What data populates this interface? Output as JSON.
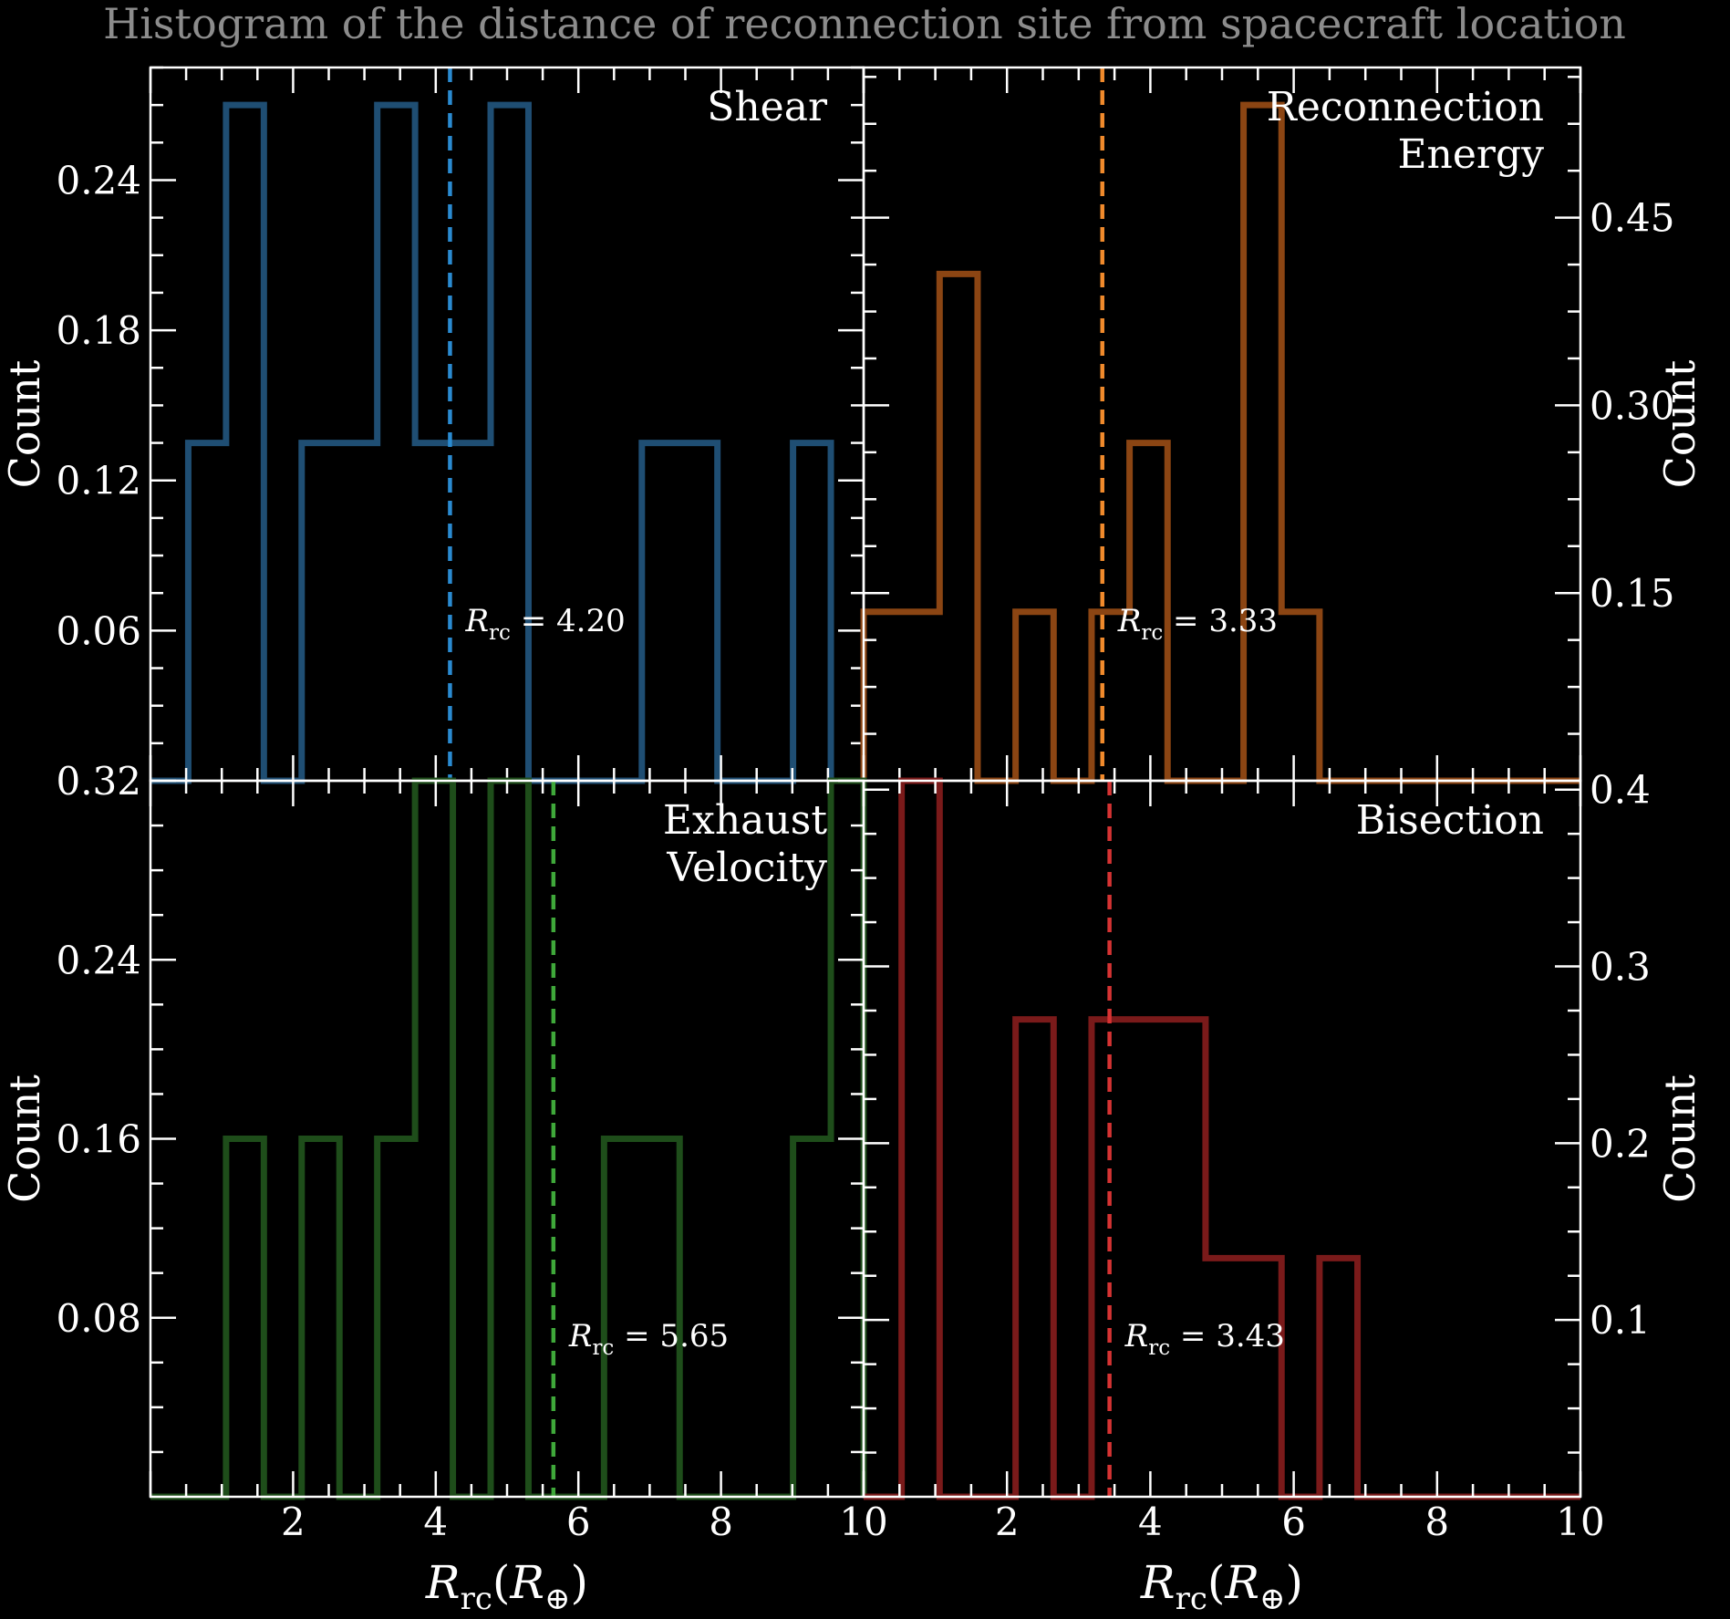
{
  "figure": {
    "title": "Histogram of the distance of reconnection site from spacecraft location",
    "title_color": "#8c8c8c",
    "xlabel": {
      "symbol": "R",
      "sub": "rc",
      "open": "(",
      "unit": "R",
      "unit_sub": "⊕",
      "close": ")"
    },
    "annotation_prefix": {
      "symbol": "R",
      "sub": "rc",
      "eq": " = "
    }
  },
  "chart_data": [
    {
      "type": "bar",
      "histtype": "step",
      "label": "Shear",
      "color": "#1f4e73",
      "mean_color": "#2a8bd1",
      "mean": 4.2,
      "mean_text": "4.20",
      "bin_width": 0.53,
      "bins": [
        {
          "x0": 0.0,
          "x1": 0.53,
          "y": 0.0
        },
        {
          "x0": 0.53,
          "x1": 1.06,
          "y": 0.135
        },
        {
          "x0": 1.06,
          "x1": 1.59,
          "y": 0.27
        },
        {
          "x0": 1.59,
          "x1": 2.12,
          "y": 0.0
        },
        {
          "x0": 2.12,
          "x1": 2.65,
          "y": 0.135
        },
        {
          "x0": 2.65,
          "x1": 3.18,
          "y": 0.135
        },
        {
          "x0": 3.18,
          "x1": 3.71,
          "y": 0.27
        },
        {
          "x0": 3.71,
          "x1": 4.24,
          "y": 0.135
        },
        {
          "x0": 4.24,
          "x1": 4.77,
          "y": 0.135
        },
        {
          "x0": 4.77,
          "x1": 5.3,
          "y": 0.27
        },
        {
          "x0": 5.3,
          "x1": 5.83,
          "y": 0.0
        },
        {
          "x0": 5.83,
          "x1": 6.36,
          "y": 0.0
        },
        {
          "x0": 6.36,
          "x1": 6.89,
          "y": 0.0
        },
        {
          "x0": 6.89,
          "x1": 7.42,
          "y": 0.135
        },
        {
          "x0": 7.42,
          "x1": 7.95,
          "y": 0.135
        },
        {
          "x0": 7.95,
          "x1": 8.48,
          "y": 0.0
        },
        {
          "x0": 8.48,
          "x1": 9.01,
          "y": 0.0
        },
        {
          "x0": 9.01,
          "x1": 9.54,
          "y": 0.135
        },
        {
          "x0": 9.54,
          "x1": 10.0,
          "y": 0.0
        }
      ],
      "xlim": [
        0,
        10
      ],
      "ylim": [
        0,
        0.285
      ],
      "yticks": [
        0.06,
        0.12,
        0.18,
        0.24
      ],
      "ytick_labels": [
        "0.06",
        "0.12",
        "0.18",
        "0.24"
      ],
      "y_minor_step": 0.015,
      "ylabel": "Count",
      "ylabel_side": "left",
      "legend_position": "top-right"
    },
    {
      "type": "bar",
      "histtype": "step",
      "label": "Reconnection Energy",
      "label_lines": [
        "Reconnection",
        "Energy"
      ],
      "color": "#8b4513",
      "mean_color": "#f08a2c",
      "mean": 3.33,
      "mean_text": "3.33",
      "bins": [
        {
          "x0": 0.0,
          "x1": 1.06,
          "y": 0.135
        },
        {
          "x0": 1.06,
          "x1": 1.59,
          "y": 0.405
        },
        {
          "x0": 1.59,
          "x1": 2.12,
          "y": 0.0
        },
        {
          "x0": 2.12,
          "x1": 2.65,
          "y": 0.135
        },
        {
          "x0": 2.65,
          "x1": 3.18,
          "y": 0.0
        },
        {
          "x0": 3.18,
          "x1": 3.71,
          "y": 0.135
        },
        {
          "x0": 3.71,
          "x1": 4.24,
          "y": 0.27
        },
        {
          "x0": 4.24,
          "x1": 5.3,
          "y": 0.0
        },
        {
          "x0": 5.3,
          "x1": 5.83,
          "y": 0.54
        },
        {
          "x0": 5.83,
          "x1": 6.36,
          "y": 0.135
        },
        {
          "x0": 6.36,
          "x1": 10.0,
          "y": 0.0
        }
      ],
      "xlim": [
        0,
        10
      ],
      "ylim": [
        0,
        0.57
      ],
      "yticks": [
        0.15,
        0.3,
        0.45
      ],
      "ytick_labels": [
        "0.15",
        "0.30",
        "0.45"
      ],
      "y_minor_step": 0.0375,
      "ylabel": "Count",
      "ylabel_side": "right",
      "legend_position": "top-right"
    },
    {
      "type": "bar",
      "histtype": "step",
      "label": "Exhaust Velocity",
      "label_lines": [
        "Exhaust",
        "Velocity"
      ],
      "color": "#1e4d1a",
      "mean_color": "#3fa83a",
      "mean": 5.65,
      "mean_text": "5.65",
      "bins": [
        {
          "x0": 0.0,
          "x1": 1.06,
          "y": 0.0
        },
        {
          "x0": 1.06,
          "x1": 1.59,
          "y": 0.16
        },
        {
          "x0": 1.59,
          "x1": 2.12,
          "y": 0.0
        },
        {
          "x0": 2.12,
          "x1": 2.65,
          "y": 0.16
        },
        {
          "x0": 2.65,
          "x1": 3.18,
          "y": 0.0
        },
        {
          "x0": 3.18,
          "x1": 3.71,
          "y": 0.16
        },
        {
          "x0": 3.71,
          "x1": 4.24,
          "y": 0.32
        },
        {
          "x0": 4.24,
          "x1": 4.77,
          "y": 0.0
        },
        {
          "x0": 4.77,
          "x1": 5.3,
          "y": 0.32
        },
        {
          "x0": 5.3,
          "x1": 6.36,
          "y": 0.0
        },
        {
          "x0": 6.36,
          "x1": 7.42,
          "y": 0.16
        },
        {
          "x0": 7.42,
          "x1": 9.01,
          "y": 0.0
        },
        {
          "x0": 9.01,
          "x1": 9.54,
          "y": 0.16
        },
        {
          "x0": 9.54,
          "x1": 10.0,
          "y": 0.32
        }
      ],
      "xlim": [
        0,
        10
      ],
      "ylim": [
        0,
        0.32
      ],
      "yticks": [
        0.08,
        0.16,
        0.24,
        0.32
      ],
      "ytick_labels": [
        "0.08",
        "0.16",
        "0.24",
        "0.32"
      ],
      "y_minor_step": 0.02,
      "xticks": [
        2,
        4,
        6,
        8,
        10
      ],
      "xtick_labels": [
        "2",
        "4",
        "6",
        "8",
        "10"
      ],
      "ylabel": "Count",
      "ylabel_side": "left",
      "legend_position": "top-right"
    },
    {
      "type": "bar",
      "histtype": "step",
      "label": "Bisection",
      "color": "#7a1a1a",
      "mean_color": "#d63333",
      "mean": 3.43,
      "mean_text": "3.43",
      "bins": [
        {
          "x0": 0.0,
          "x1": 0.53,
          "y": 0.0
        },
        {
          "x0": 0.53,
          "x1": 1.06,
          "y": 0.405
        },
        {
          "x0": 1.06,
          "x1": 2.12,
          "y": 0.0
        },
        {
          "x0": 2.12,
          "x1": 2.65,
          "y": 0.27
        },
        {
          "x0": 2.65,
          "x1": 3.18,
          "y": 0.0
        },
        {
          "x0": 3.18,
          "x1": 4.77,
          "y": 0.27
        },
        {
          "x0": 4.77,
          "x1": 5.83,
          "y": 0.135
        },
        {
          "x0": 5.83,
          "x1": 6.36,
          "y": 0.0
        },
        {
          "x0": 6.36,
          "x1": 6.89,
          "y": 0.135
        },
        {
          "x0": 6.89,
          "x1": 10.0,
          "y": 0.0
        }
      ],
      "xlim": [
        0,
        10
      ],
      "ylim": [
        0,
        0.405
      ],
      "yticks": [
        0.1,
        0.2,
        0.3,
        0.4
      ],
      "ytick_labels": [
        "0.1",
        "0.2",
        "0.3",
        "0.4"
      ],
      "y_minor_step": 0.025,
      "xticks": [
        2,
        4,
        6,
        8,
        10
      ],
      "xtick_labels": [
        "2",
        "4",
        "6",
        "8",
        "10"
      ],
      "ylabel": "Count",
      "ylabel_side": "right",
      "legend_position": "top-right"
    }
  ]
}
